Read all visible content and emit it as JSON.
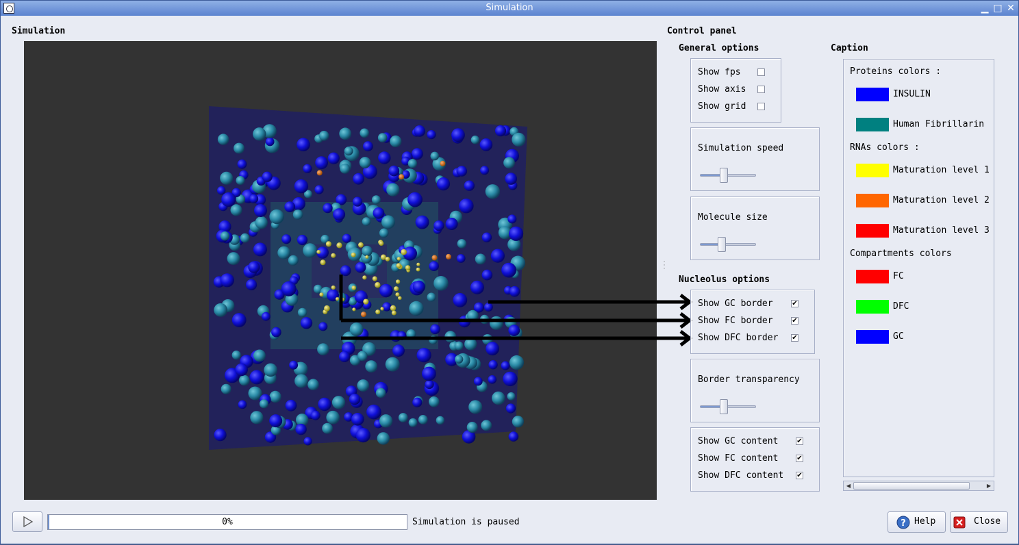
{
  "window": {
    "title": "Simulation"
  },
  "simulation_panel": {
    "title": "Simulation"
  },
  "control_panel": {
    "title": "Control panel",
    "general_options": {
      "title": "General options",
      "show_fps": "Show fps",
      "show_axis": "Show axis",
      "show_grid": "Show grid",
      "show_fps_checked": false,
      "show_axis_checked": false,
      "show_grid_checked": false
    },
    "simulation_speed": {
      "label": "Simulation speed",
      "level": 0.5
    },
    "molecule_size": {
      "label": "Molecule size",
      "level": 0.45
    },
    "nucleolus_options": {
      "title": "Nucleolus options",
      "show_gc_border": "Show GC border",
      "show_fc_border": "Show FC border",
      "show_dfc_border": "Show DFC border",
      "borders_checked": [
        true,
        true,
        true
      ]
    },
    "border_transparency": {
      "label": "Border transparency",
      "level": 0.5
    },
    "content": {
      "show_gc_content": "Show GC content",
      "show_fc_content": "Show FC content",
      "show_dfc_content": "Show DFC content",
      "content_checked": [
        true,
        true,
        true
      ]
    }
  },
  "caption": {
    "title": "Caption",
    "proteins_heading": "Proteins colors :",
    "proteins": [
      {
        "name": "INSULIN",
        "color": "#0000ff"
      },
      {
        "name": "Human Fibrillarin",
        "color": "#008080"
      }
    ],
    "rnas_heading": "RNAs colors :",
    "rnas": [
      {
        "name": "Maturation level 1",
        "color": "#ffff00"
      },
      {
        "name": "Maturation level 2",
        "color": "#ff6600"
      },
      {
        "name": "Maturation level 3",
        "color": "#ff0000"
      }
    ],
    "compartments_heading": "Compartments colors",
    "compartments": [
      {
        "name": "FC",
        "color": "#ff0000"
      },
      {
        "name": "DFC",
        "color": "#00ff00"
      },
      {
        "name": "GC",
        "color": "#0000ff"
      }
    ]
  },
  "footer": {
    "progress_text": "0%",
    "progress_value": 0,
    "status_text": "Simulation is paused",
    "help_label": "Help",
    "close_label": "Close"
  }
}
